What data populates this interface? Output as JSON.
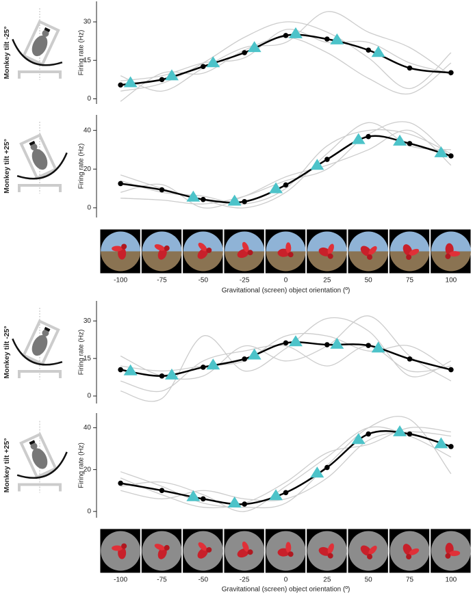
{
  "chart_data": [
    {
      "type": "line",
      "side_label": "Monkey tilt -25°",
      "ylabel": "Firing rate (Hz)",
      "xlim": [
        -110,
        110
      ],
      "ylim": [
        -2,
        38
      ],
      "yticks": [
        0,
        15,
        30
      ],
      "series": [
        {
          "color": "#cccccc",
          "x": [
            -100,
            -75,
            -50,
            -25,
            0,
            25,
            50,
            75,
            100
          ],
          "values": [
            3,
            6,
            14,
            24,
            30,
            26,
            16,
            4,
            18
          ]
        },
        {
          "color": "#cccccc",
          "x": [
            -100,
            -75,
            -50,
            -25,
            0,
            25,
            50,
            75,
            100
          ],
          "values": [
            9,
            3,
            12,
            20,
            22,
            34,
            26,
            20,
            9
          ]
        },
        {
          "color": "#cccccc",
          "x": [
            -100,
            -75,
            -50,
            -25,
            0,
            25,
            50,
            75,
            100
          ],
          "values": [
            7,
            9,
            14,
            16,
            27,
            22,
            22,
            14,
            10
          ]
        },
        {
          "color": "#cccccc",
          "x": [
            -100,
            -75,
            -50,
            -25,
            0,
            25,
            50,
            75,
            100
          ],
          "values": [
            -1,
            10,
            10,
            19,
            24,
            18,
            8,
            2,
            14
          ]
        },
        {
          "color": "#000000",
          "marker": "circle",
          "x": [
            -100,
            -75,
            -50,
            -25,
            0,
            25,
            50,
            75,
            100
          ],
          "values": [
            5.4,
            7.5,
            12.6,
            18,
            24.7,
            23.3,
            19,
            12,
            10.2
          ]
        },
        {
          "color": "#4cc3c9",
          "marker": "triangle",
          "x": [
            -94,
            -69,
            -44,
            -19,
            6,
            31,
            56
          ],
          "values": [
            6.4,
            9.1,
            14.2,
            20.1,
            25.5,
            23.1,
            18.2
          ]
        }
      ]
    },
    {
      "type": "line",
      "side_label": "Monkey tilt +25°",
      "ylabel": "Firing rate (Hz)",
      "xlabel": "Gravitational (screen) object orientation (º)",
      "strip": "scene",
      "xlim": [
        -110,
        110
      ],
      "ylim": [
        -5,
        48
      ],
      "yticks": [
        0,
        20,
        40
      ],
      "xticks": [
        -100,
        -75,
        -50,
        -25,
        0,
        25,
        50,
        75,
        100
      ],
      "series": [
        {
          "color": "#cccccc",
          "x": [
            -100,
            -75,
            -50,
            -25,
            0,
            25,
            50,
            75,
            100
          ],
          "values": [
            17,
            10,
            4,
            0,
            8,
            28,
            44,
            32,
            30
          ]
        },
        {
          "color": "#cccccc",
          "x": [
            -100,
            -75,
            -50,
            -25,
            0,
            25,
            50,
            75,
            100
          ],
          "values": [
            5,
            4,
            2,
            6,
            14,
            20,
            38,
            44,
            26
          ]
        },
        {
          "color": "#cccccc",
          "x": [
            -100,
            -75,
            -50,
            -25,
            0,
            25,
            50,
            75,
            100
          ],
          "values": [
            14,
            8,
            6,
            2,
            10,
            32,
            40,
            38,
            28
          ]
        },
        {
          "color": "#cccccc",
          "x": [
            -100,
            -75,
            -50,
            -25,
            0,
            25,
            50,
            75,
            100
          ],
          "values": [
            8,
            12,
            0,
            6,
            16,
            22,
            30,
            40,
            22
          ]
        },
        {
          "color": "#000000",
          "marker": "circle",
          "x": [
            -100,
            -75,
            -50,
            -25,
            0,
            25,
            50,
            75,
            100
          ],
          "values": [
            12.5,
            9.3,
            4.3,
            3.2,
            11.8,
            25,
            36.8,
            33.2,
            26.8
          ]
        },
        {
          "color": "#4cc3c9",
          "marker": "triangle",
          "x": [
            -56,
            -31,
            -6,
            19,
            44,
            69,
            94
          ],
          "values": [
            5.7,
            3.6,
            10,
            22.1,
            35.4,
            34.6,
            28.6
          ]
        }
      ]
    },
    {
      "type": "line",
      "side_label": "Monkey tilt -25°",
      "ylabel": "Firing rate (Hz)",
      "xlim": [
        -110,
        110
      ],
      "ylim": [
        -3,
        38
      ],
      "yticks": [
        0,
        15,
        30
      ],
      "series": [
        {
          "color": "#cccccc",
          "x": [
            -100,
            -75,
            -50,
            -25,
            0,
            25,
            50,
            75,
            100
          ],
          "values": [
            2,
            -1,
            24,
            10,
            19,
            31,
            26,
            8,
            14
          ]
        },
        {
          "color": "#cccccc",
          "x": [
            -100,
            -75,
            -50,
            -25,
            0,
            25,
            50,
            75,
            100
          ],
          "values": [
            16,
            8,
            8,
            20,
            14,
            20,
            32,
            16,
            6
          ]
        },
        {
          "color": "#cccccc",
          "x": [
            -100,
            -75,
            -50,
            -25,
            0,
            25,
            50,
            75,
            100
          ],
          "values": [
            12,
            10,
            12,
            14,
            24,
            24,
            18,
            20,
            10
          ]
        },
        {
          "color": "#cccccc",
          "x": [
            -100,
            -75,
            -50,
            -25,
            0,
            25,
            50,
            75,
            100
          ],
          "values": [
            6,
            2,
            14,
            18,
            20,
            12,
            20,
            10,
            12
          ]
        },
        {
          "color": "#000000",
          "marker": "circle",
          "x": [
            -100,
            -75,
            -50,
            -25,
            0,
            25,
            50,
            75,
            100
          ],
          "values": [
            10.5,
            8,
            11.5,
            14.8,
            21.2,
            20.5,
            20.2,
            14.8,
            10.5
          ]
        },
        {
          "color": "#4cc3c9",
          "marker": "triangle",
          "x": [
            -94,
            -69,
            -44,
            -19,
            6,
            31,
            56
          ],
          "values": [
            10.2,
            8.5,
            12.5,
            16.5,
            21.8,
            20.8,
            19.3
          ]
        }
      ]
    },
    {
      "type": "line",
      "side_label": "Monkey tilt +25°",
      "ylabel": "Firing rate (Hz)",
      "xlabel": "Gravitational (screen) object orientation (º)",
      "strip": "gray",
      "xlim": [
        -110,
        110
      ],
      "ylim": [
        -3,
        47
      ],
      "yticks": [
        0,
        20,
        40
      ],
      "xticks": [
        -100,
        -75,
        -50,
        -25,
        0,
        25,
        50,
        75,
        100
      ],
      "series": [
        {
          "color": "#cccccc",
          "x": [
            -100,
            -75,
            -50,
            -25,
            0,
            25,
            50,
            75,
            100
          ],
          "values": [
            19,
            12,
            4,
            2,
            4,
            22,
            40,
            44,
            18
          ]
        },
        {
          "color": "#cccccc",
          "x": [
            -100,
            -75,
            -50,
            -25,
            0,
            25,
            50,
            75,
            100
          ],
          "values": [
            12,
            14,
            8,
            0,
            12,
            26,
            40,
            36,
            26
          ]
        },
        {
          "color": "#cccccc",
          "x": [
            -100,
            -75,
            -50,
            -25,
            0,
            25,
            50,
            75,
            100
          ],
          "values": [
            10,
            6,
            10,
            6,
            6,
            16,
            34,
            38,
            36
          ]
        },
        {
          "color": "#cccccc",
          "x": [
            -100,
            -75,
            -50,
            -25,
            0,
            25,
            50,
            75,
            100
          ],
          "values": [
            16,
            8,
            2,
            4,
            14,
            28,
            32,
            40,
            38
          ]
        },
        {
          "color": "#000000",
          "marker": "circle",
          "x": [
            -100,
            -75,
            -50,
            -25,
            0,
            25,
            50,
            75,
            100
          ],
          "values": [
            13.5,
            10,
            6,
            3.5,
            9,
            21,
            37,
            37,
            31
          ]
        },
        {
          "color": "#4cc3c9",
          "marker": "triangle",
          "x": [
            -56,
            -31,
            -6,
            19,
            44,
            69,
            94
          ],
          "values": [
            7.2,
            4.2,
            7.7,
            18.5,
            34.5,
            38.2,
            32.5
          ]
        }
      ]
    }
  ]
}
